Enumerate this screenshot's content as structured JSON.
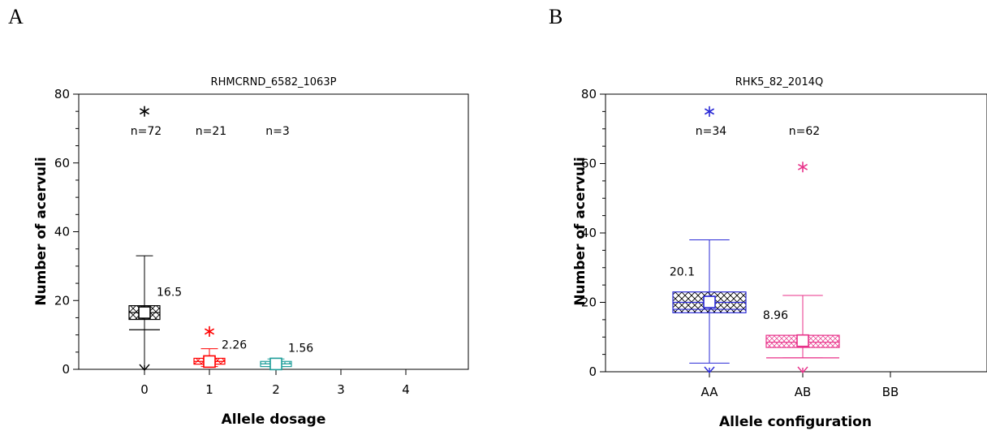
{
  "panels": {
    "A": {
      "letter": "A"
    },
    "B": {
      "letter": "B"
    }
  },
  "chart_data": [
    {
      "type": "box",
      "panel": "A",
      "title": "RHMCRND_6582_1063P",
      "xlabel": "Allele dosage",
      "ylabel": "Number of acervuli",
      "ylim": [
        0,
        80
      ],
      "yticks": [
        0,
        20,
        40,
        60,
        80
      ],
      "categories": [
        "0",
        "1",
        "2",
        "3",
        "4"
      ],
      "boxes": [
        {
          "category": "0",
          "n_label": "n=72",
          "mean_label": "16.5",
          "mean": 16.5,
          "q1": 14.5,
          "median": 16.5,
          "q3": 18.5,
          "whisker_low": 0,
          "whisker_high": 33,
          "p10": 11.5,
          "outlier": 75,
          "color": "#000000",
          "pattern": "grid"
        },
        {
          "category": "1",
          "n_label": "n=21",
          "mean_label": "2.26",
          "mean": 2.26,
          "q1": 1.5,
          "median": 2.3,
          "q3": 3.2,
          "whisker_low": 0.8,
          "whisker_high": 6,
          "p10": null,
          "outlier": 11,
          "color": "#ff0000",
          "pattern": "grid"
        },
        {
          "category": "2",
          "n_label": "n=3",
          "mean_label": "1.56",
          "mean": 1.56,
          "q1": 0.8,
          "median": 1.6,
          "q3": 2.3,
          "whisker_low": 0.8,
          "whisker_high": 3,
          "p10": null,
          "outlier": null,
          "color": "#1f9e9a",
          "pattern": "dots"
        }
      ],
      "grid": false
    },
    {
      "type": "box",
      "panel": "B",
      "title": "RHK5_82_2014Q",
      "xlabel": "Allele configuration",
      "ylabel": "Number of acervuli",
      "ylim": [
        0,
        80
      ],
      "yticks": [
        0,
        20,
        40,
        60,
        80
      ],
      "categories": [
        "AA",
        "AB",
        "BB"
      ],
      "boxes": [
        {
          "category": "AA",
          "n_label": "n=34",
          "mean_label": "20.1",
          "mean": 20.1,
          "q1": 17,
          "median": 20,
          "q3": 23,
          "whisker_low": 2.5,
          "whisker_high": 38,
          "p10": 18,
          "outlier": 75,
          "min_marker": 0,
          "color": "#2a2ad6",
          "pattern": "grid"
        },
        {
          "category": "AB",
          "n_label": "n=62",
          "mean_label": "8.96",
          "mean": 8.96,
          "q1": 7,
          "median": 8.5,
          "q3": 10.5,
          "whisker_low": 4,
          "whisker_high": 22,
          "p10": 4,
          "outlier": 59,
          "min_marker": 0,
          "color": "#e8328a",
          "pattern": "dots"
        }
      ],
      "grid": false
    }
  ]
}
